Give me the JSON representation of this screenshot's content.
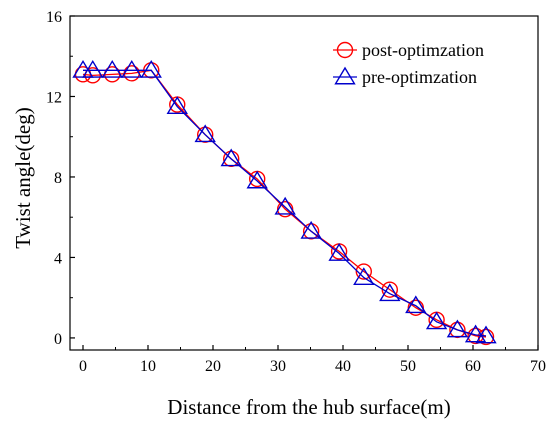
{
  "chart_data": {
    "type": "line",
    "xlabel": "Distance from the hub surface(m)",
    "ylabel": "Twist angle(deg)",
    "xlim": [
      -2,
      70
    ],
    "ylim": [
      -0.6,
      16
    ],
    "xticks": [
      0,
      10,
      20,
      30,
      40,
      50,
      60,
      70
    ],
    "yticks": [
      0,
      4,
      8,
      12,
      16
    ],
    "grid": false,
    "legend_position": "top-right",
    "series": [
      {
        "name": "post-optimzation",
        "color": "#ff0000",
        "marker": "circle",
        "x": [
          0,
          1.5,
          4.5,
          7.5,
          10.5,
          14.5,
          18.8,
          22.8,
          26.8,
          31.1,
          35.1,
          39.4,
          43.2,
          47.2,
          51.2,
          54.4,
          57.6,
          60.4,
          62.0
        ],
        "y": [
          13.1,
          13.05,
          13.1,
          13.15,
          13.3,
          11.6,
          10.1,
          8.9,
          7.9,
          6.4,
          5.3,
          4.3,
          3.3,
          2.4,
          1.5,
          0.9,
          0.4,
          0.1,
          0.05
        ]
      },
      {
        "name": "pre-optimzation",
        "color": "#0000cc",
        "marker": "triangle",
        "x": [
          0,
          1.5,
          4.5,
          7.5,
          10.5,
          14.5,
          18.8,
          22.8,
          26.8,
          31.1,
          35.1,
          39.4,
          43.2,
          47.2,
          51.2,
          54.4,
          57.6,
          60.4,
          62.0
        ],
        "y": [
          13.3,
          13.3,
          13.3,
          13.3,
          13.3,
          11.5,
          10.1,
          8.9,
          7.8,
          6.5,
          5.3,
          4.2,
          3.0,
          2.2,
          1.6,
          0.8,
          0.4,
          0.15,
          0.1
        ]
      }
    ]
  }
}
